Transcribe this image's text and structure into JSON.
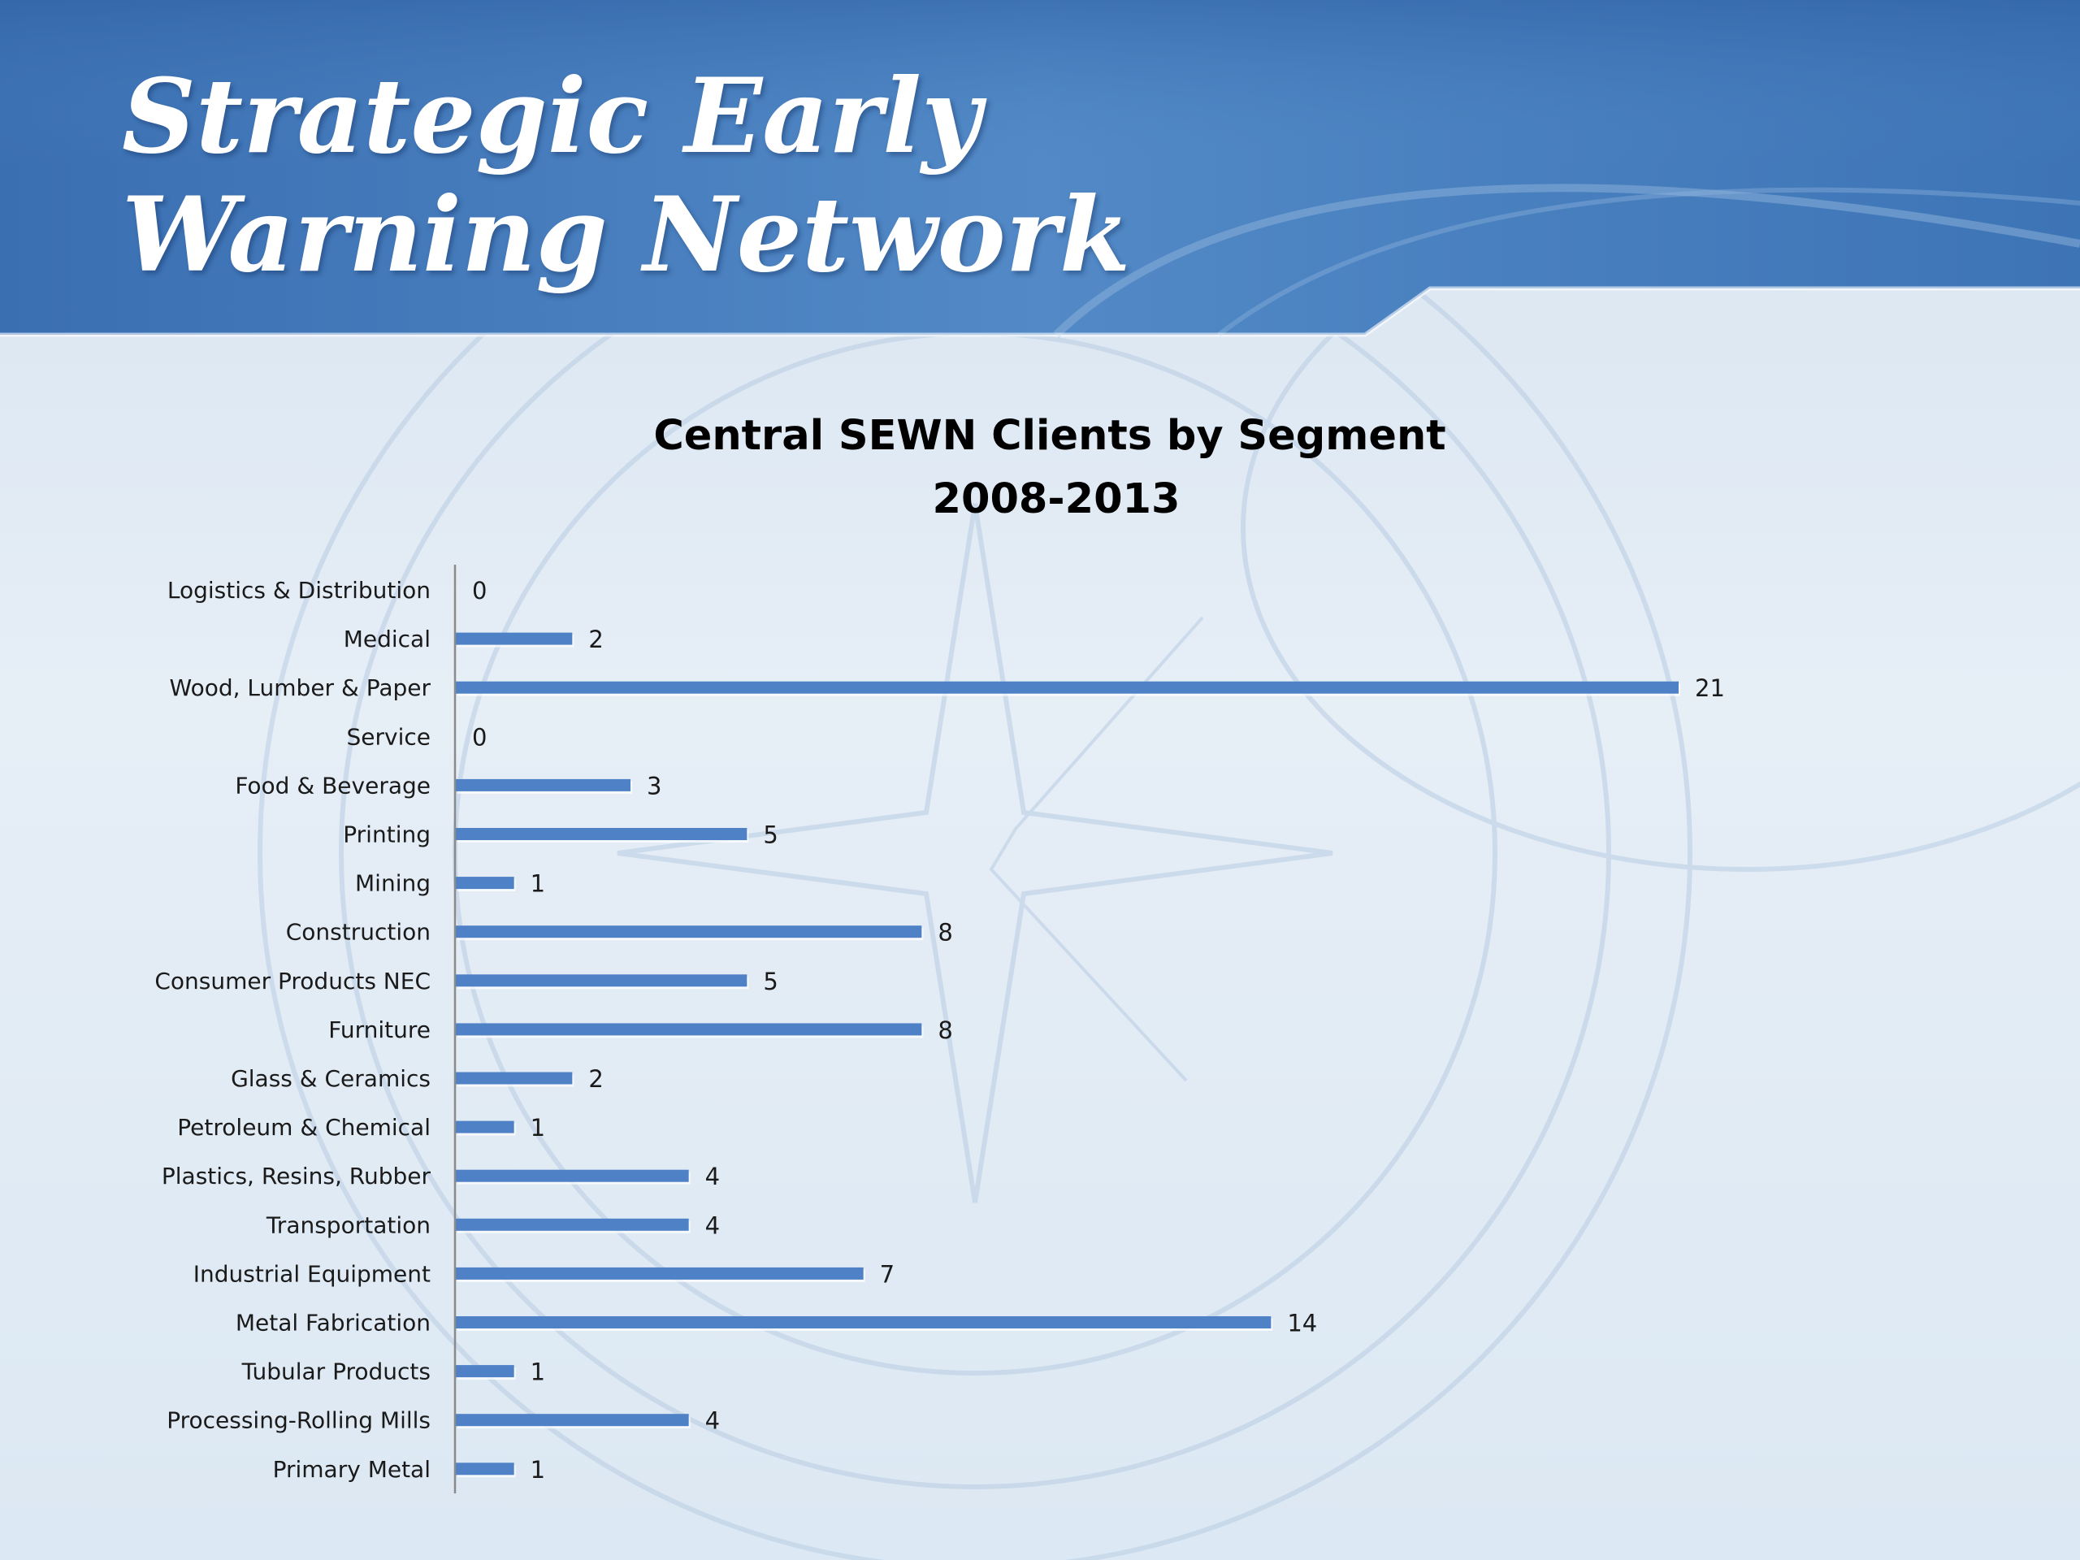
{
  "slide": {
    "title_line1": "Strategic Early",
    "title_line2": "Warning Network"
  },
  "colors": {
    "banner": "#3f74b5",
    "banner_dark": "#2e5f9e",
    "bar": "#4f81c7",
    "background": "#dce7f2"
  },
  "chart_data": {
    "type": "bar",
    "orientation": "horizontal",
    "title": "Central SEWN Clients by Segment",
    "subtitle": "2008-2013",
    "categories": [
      "Logistics & Distribution",
      "Medical",
      "Wood, Lumber & Paper",
      "Service",
      "Food & Beverage",
      "Printing",
      "Mining",
      "Construction",
      "Consumer Products NEC",
      "Furniture",
      "Glass & Ceramics",
      "Petroleum & Chemical",
      "Plastics, Resins, Rubber",
      "Transportation",
      "Industrial Equipment",
      "Metal Fabrication",
      "Tubular Products",
      "Processing-Rolling Mills",
      "Primary Metal"
    ],
    "values": [
      0,
      2,
      21,
      0,
      3,
      5,
      1,
      8,
      5,
      8,
      2,
      1,
      4,
      4,
      7,
      14,
      1,
      4,
      1
    ],
    "xlim": [
      0,
      21
    ],
    "data_labels": true,
    "grid": false,
    "legend": "none"
  }
}
